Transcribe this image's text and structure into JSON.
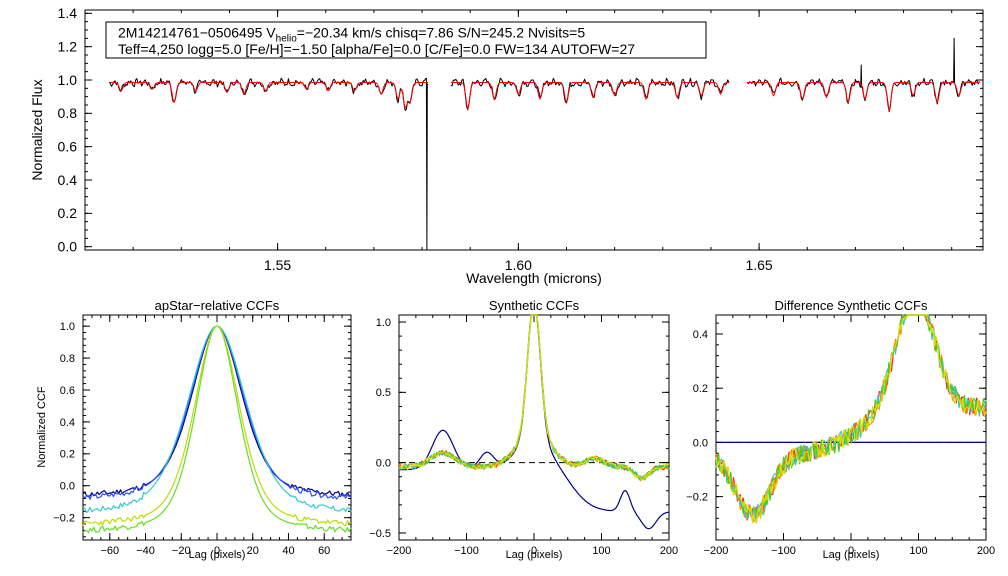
{
  "chart_data": [
    {
      "id": "spectrum",
      "type": "line",
      "xlabel": "Wavelength (microns)",
      "ylabel": "Normalized Flux",
      "xlim": [
        1.51,
        1.6965
      ],
      "ylim": [
        -0.02,
        1.42
      ],
      "xticks": [
        1.55,
        1.6,
        1.65
      ],
      "xtick_labels": [
        "1.55",
        "1.60",
        "1.65"
      ],
      "yticks": [
        0.0,
        0.2,
        0.4,
        0.6,
        0.8,
        1.0,
        1.2,
        1.4
      ],
      "ytick_labels": [
        "0.0",
        "0.2",
        "0.4",
        "0.6",
        "0.8",
        "1.0",
        "1.2",
        "1.4"
      ],
      "info_line1_parts": [
        "2M14214761−0506495  V",
        "helio",
        "=−20.34 km/s  chisq=7.86  S/N=245.2  Nvisits=5"
      ],
      "info_line2": "Teff=4,250 logg=5.0 [Fe/H]=−1.50 [alpha/Fe]=0.0 [C/Fe]=0.0 FW=134 AUTOFW=27",
      "series": [
        {
          "name": "observed",
          "color": "#000000"
        },
        {
          "name": "model",
          "color": "#ff0000"
        }
      ],
      "segments": [
        {
          "start": 1.515,
          "end": 1.5815
        },
        {
          "start": 1.586,
          "end": 1.644
        },
        {
          "start": 1.6475,
          "end": 1.696
        }
      ],
      "features": [
        {
          "x": 1.5175,
          "depth": 0.05
        },
        {
          "x": 1.524,
          "depth": 0.04
        },
        {
          "x": 1.5285,
          "depth": 0.12
        },
        {
          "x": 1.533,
          "depth": 0.05
        },
        {
          "x": 1.5395,
          "depth": 0.06
        },
        {
          "x": 1.543,
          "depth": 0.07
        },
        {
          "x": 1.5475,
          "depth": 0.05
        },
        {
          "x": 1.556,
          "depth": 0.04
        },
        {
          "x": 1.5605,
          "depth": 0.05
        },
        {
          "x": 1.566,
          "depth": 0.05
        },
        {
          "x": 1.5715,
          "depth": 0.07
        },
        {
          "x": 1.575,
          "depth": 0.1
        },
        {
          "x": 1.5765,
          "depth": 0.15
        },
        {
          "x": 1.5775,
          "depth": 0.12
        },
        {
          "x": 1.5895,
          "depth": 0.16
        },
        {
          "x": 1.595,
          "depth": 0.1
        },
        {
          "x": 1.6,
          "depth": 0.07
        },
        {
          "x": 1.6045,
          "depth": 0.1
        },
        {
          "x": 1.61,
          "depth": 0.12
        },
        {
          "x": 1.6155,
          "depth": 0.09
        },
        {
          "x": 1.62,
          "depth": 0.08
        },
        {
          "x": 1.6265,
          "depth": 0.1
        },
        {
          "x": 1.633,
          "depth": 0.09
        },
        {
          "x": 1.638,
          "depth": 0.08
        },
        {
          "x": 1.642,
          "depth": 0.07
        },
        {
          "x": 1.653,
          "depth": 0.08
        },
        {
          "x": 1.659,
          "depth": 0.1
        },
        {
          "x": 1.664,
          "depth": 0.09
        },
        {
          "x": 1.6685,
          "depth": 0.12
        },
        {
          "x": 1.672,
          "depth": 0.1
        },
        {
          "x": 1.677,
          "depth": 0.17
        },
        {
          "x": 1.682,
          "depth": 0.08
        },
        {
          "x": 1.687,
          "depth": 0.12
        },
        {
          "x": 1.6915,
          "depth": 0.08
        }
      ],
      "spikes": [
        {
          "x": 1.581,
          "y": -0.05
        },
        {
          "x": 1.6712,
          "y": 1.09
        },
        {
          "x": 1.6905,
          "y": 1.25
        }
      ]
    },
    {
      "id": "apstar",
      "type": "line",
      "title": "apStar−relative CCFs",
      "xlabel": "Lag (pixels)",
      "ylabel": "Normalized CCF",
      "xlim": [
        -75,
        75
      ],
      "ylim": [
        -0.34,
        1.07
      ],
      "xticks": [
        -60,
        -40,
        -20,
        0,
        20,
        40,
        60
      ],
      "xtick_labels": [
        "−60",
        "−40",
        "−20",
        "0",
        "20",
        "40",
        "60"
      ],
      "yticks": [
        -0.2,
        0.0,
        0.2,
        0.4,
        0.6,
        0.8,
        1.0
      ],
      "ytick_labels": [
        "−0.2",
        "0.0",
        "0.2",
        "0.4",
        "0.6",
        "0.8",
        "1.0"
      ],
      "series": [
        {
          "name": "visit-1",
          "color": "#00008b",
          "width": 19,
          "floor": -0.08
        },
        {
          "name": "visit-2",
          "color": "#3050ff",
          "width": 20,
          "floor": -0.1
        },
        {
          "name": "visit-3",
          "color": "#33cccc",
          "width": 22,
          "floor": -0.19
        },
        {
          "name": "visit-4",
          "color": "#66dd22",
          "width": 16,
          "floor": -0.3
        },
        {
          "name": "visit-5",
          "color": "#bbdd00",
          "width": 17,
          "floor": -0.26
        }
      ]
    },
    {
      "id": "synthetic",
      "type": "line",
      "title": "Synthetic CCFs",
      "xlabel": "Lag (pixels)",
      "xlim": [
        -200,
        200
      ],
      "ylim": [
        -0.55,
        1.05
      ],
      "xticks": [
        -200,
        -100,
        0,
        100,
        200
      ],
      "xtick_labels": [
        "−200",
        "−100",
        "0",
        "100",
        "200"
      ],
      "yticks": [
        -0.5,
        0.0,
        0.5,
        1.0
      ],
      "ytick_labels": [
        "−0.5",
        "0.0",
        "0.5",
        "1.0"
      ],
      "zero_line": true,
      "series": [
        {
          "name": "template",
          "color": "#00008b"
        },
        {
          "name": "visit-1",
          "color": "#ff2020"
        },
        {
          "name": "visit-2",
          "color": "#ff8800"
        },
        {
          "name": "visit-3",
          "color": "#33cccc"
        },
        {
          "name": "visit-4",
          "color": "#44cc22"
        },
        {
          "name": "visit-5",
          "color": "#dddd00"
        }
      ]
    },
    {
      "id": "difference",
      "type": "line",
      "title": "Difference Synthetic CCFs",
      "xlabel": "Lag (pixels)",
      "xlim": [
        -200,
        200
      ],
      "ylim": [
        -0.36,
        0.47
      ],
      "xticks": [
        -200,
        -100,
        0,
        100,
        200
      ],
      "xtick_labels": [
        "−200",
        "−100",
        "0",
        "100",
        "200"
      ],
      "yticks": [
        -0.2,
        0.0,
        0.2,
        0.4
      ],
      "ytick_labels": [
        "−0.2",
        "0.0",
        "0.2",
        "0.4"
      ],
      "zero_line": true,
      "series": [
        {
          "name": "template",
          "color": "#00008b"
        },
        {
          "name": "visit-1",
          "color": "#ff2020"
        },
        {
          "name": "visit-2",
          "color": "#ff8800"
        },
        {
          "name": "visit-3",
          "color": "#33cccc"
        },
        {
          "name": "visit-4",
          "color": "#44cc22"
        },
        {
          "name": "visit-5",
          "color": "#dddd00"
        }
      ]
    }
  ]
}
